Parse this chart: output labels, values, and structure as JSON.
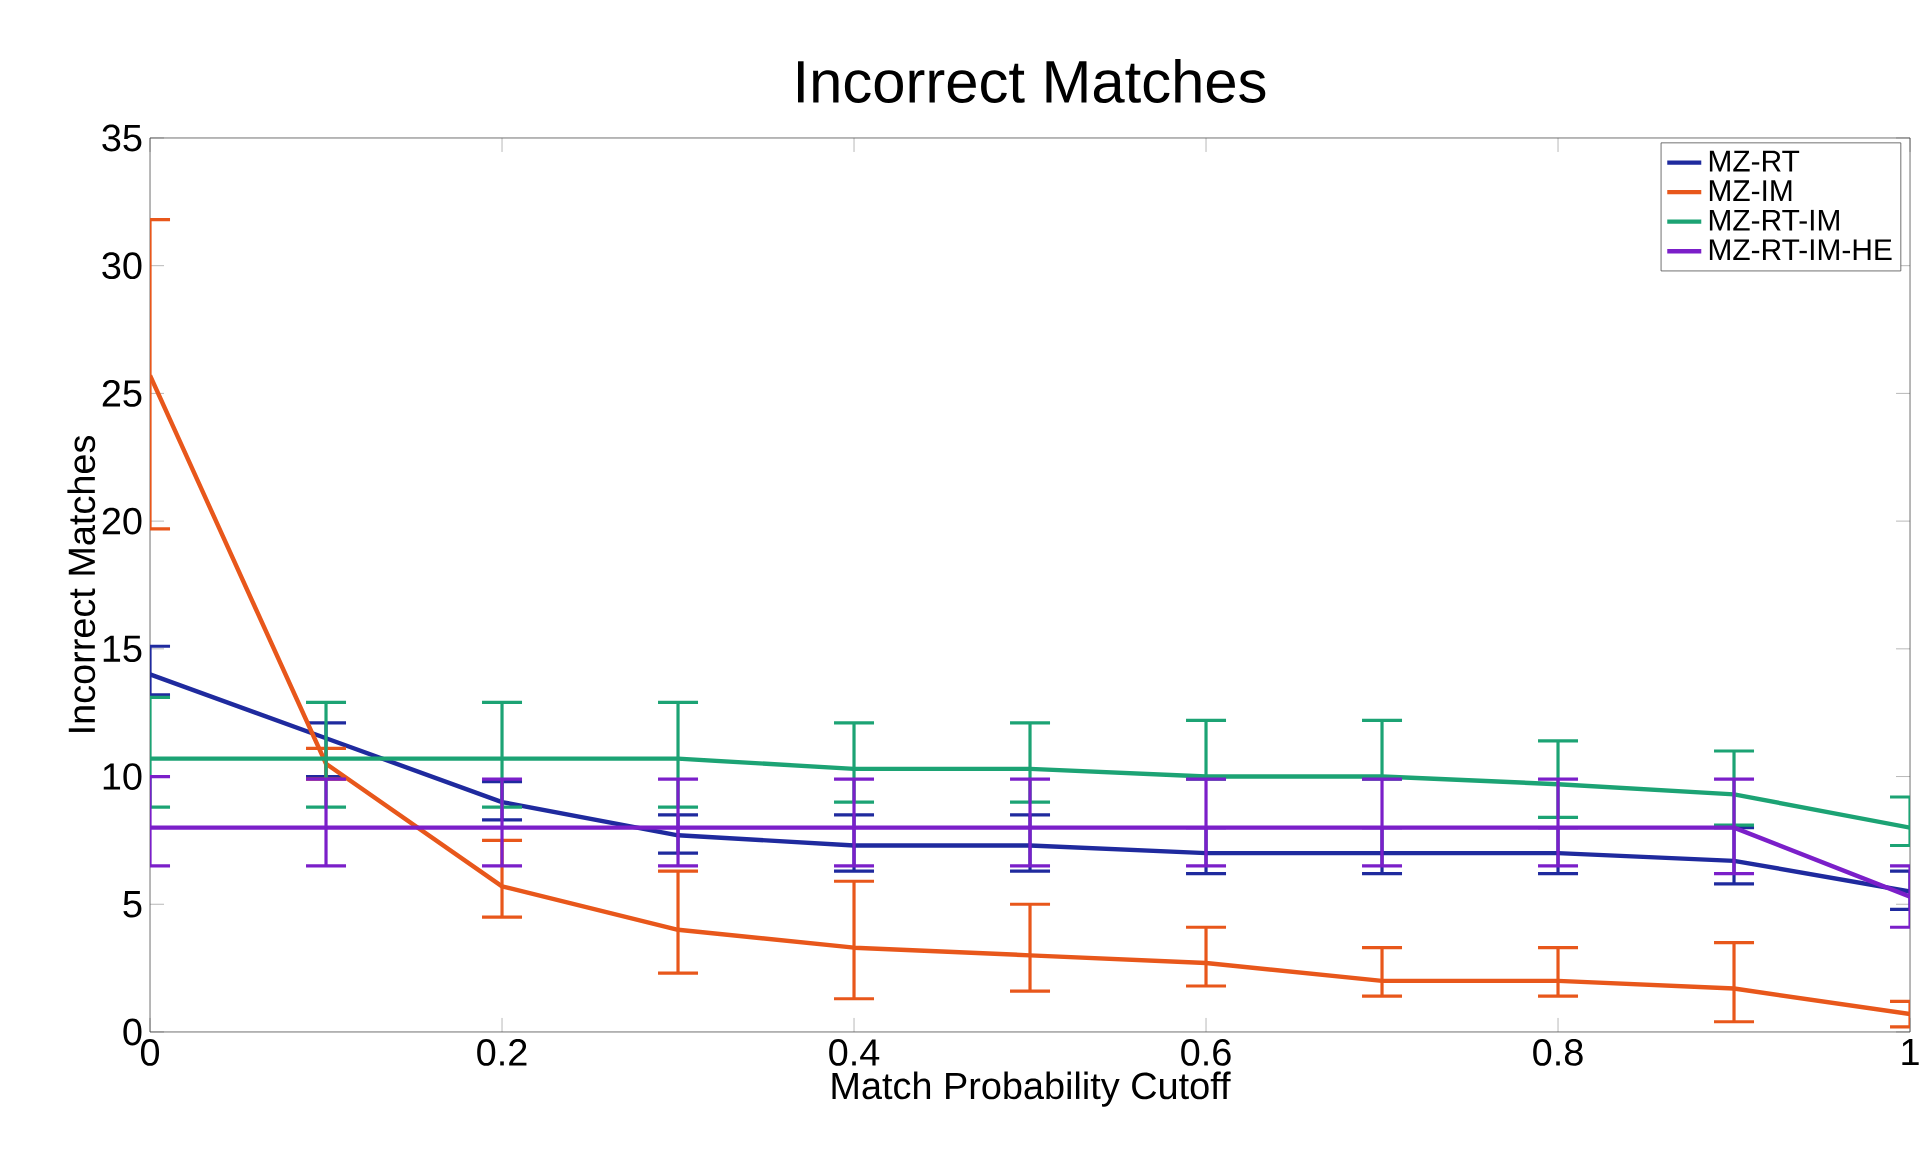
{
  "chart_data": {
    "type": "line",
    "title": "Incorrect Matches",
    "xlabel": "Match Probability Cutoff",
    "ylabel": "Incorrect Matches",
    "x": [
      0,
      0.1,
      0.2,
      0.3,
      0.4,
      0.5,
      0.6,
      0.7,
      0.8,
      0.9,
      1.0
    ],
    "xlim": [
      0,
      1
    ],
    "xticks": [
      0,
      0.2,
      0.4,
      0.6,
      0.8,
      1
    ],
    "ylim": [
      0,
      35
    ],
    "yticks": [
      0,
      5,
      10,
      15,
      20,
      25,
      30,
      35
    ],
    "grid": false,
    "legend": "top right",
    "marker": "none",
    "line_style": "solid",
    "series": [
      {
        "name": "MZ-RT",
        "color": "#1f2a9e",
        "values": [
          14.0,
          11.5,
          9.0,
          7.7,
          7.3,
          7.3,
          7.0,
          7.0,
          7.0,
          6.7,
          5.5
        ],
        "errors": [
          [
            13.2,
            15.1
          ],
          [
            10.0,
            12.1
          ],
          [
            8.3,
            9.8
          ],
          [
            7.0,
            8.5
          ],
          [
            6.3,
            8.5
          ],
          [
            6.3,
            8.5
          ],
          [
            6.2,
            8.0
          ],
          [
            6.2,
            8.0
          ],
          [
            6.2,
            8.0
          ],
          [
            5.8,
            8.0
          ],
          [
            4.8,
            6.3
          ]
        ]
      },
      {
        "name": "MZ-IM",
        "color": "#e8571b",
        "values": [
          25.7,
          10.5,
          5.7,
          4.0,
          3.3,
          3.0,
          2.7,
          2.0,
          2.0,
          1.7,
          0.7
        ],
        "errors": [
          [
            19.7,
            31.8
          ],
          [
            9.9,
            11.1
          ],
          [
            4.5,
            7.5
          ],
          [
            2.3,
            6.3
          ],
          [
            1.3,
            5.9
          ],
          [
            1.6,
            5.0
          ],
          [
            1.8,
            4.1
          ],
          [
            1.4,
            3.3
          ],
          [
            1.4,
            3.3
          ],
          [
            0.4,
            3.5
          ],
          [
            0.2,
            1.2
          ]
        ]
      },
      {
        "name": "MZ-RT-IM",
        "color": "#1ca374",
        "values": [
          10.7,
          10.7,
          10.7,
          10.7,
          10.3,
          10.3,
          10.0,
          10.0,
          9.7,
          9.3,
          8.0
        ],
        "errors": [
          [
            8.8,
            13.1
          ],
          [
            8.8,
            12.9
          ],
          [
            8.8,
            12.9
          ],
          [
            8.8,
            12.9
          ],
          [
            9.0,
            12.1
          ],
          [
            9.0,
            12.1
          ],
          [
            9.9,
            12.2
          ],
          [
            9.9,
            12.2
          ],
          [
            8.4,
            11.4
          ],
          [
            8.1,
            11.0
          ],
          [
            7.3,
            9.2
          ]
        ]
      },
      {
        "name": "MZ-RT-IM-HE",
        "color": "#7b1fc9",
        "values": [
          8.0,
          8.0,
          8.0,
          8.0,
          8.0,
          8.0,
          8.0,
          8.0,
          8.0,
          8.0,
          5.3
        ],
        "errors": [
          [
            6.5,
            10.0
          ],
          [
            6.5,
            9.9
          ],
          [
            6.5,
            9.9
          ],
          [
            6.5,
            9.9
          ],
          [
            6.5,
            9.9
          ],
          [
            6.5,
            9.9
          ],
          [
            6.5,
            9.9
          ],
          [
            6.5,
            9.9
          ],
          [
            6.5,
            9.9
          ],
          [
            6.2,
            9.9
          ],
          [
            4.1,
            6.5
          ]
        ]
      }
    ]
  }
}
